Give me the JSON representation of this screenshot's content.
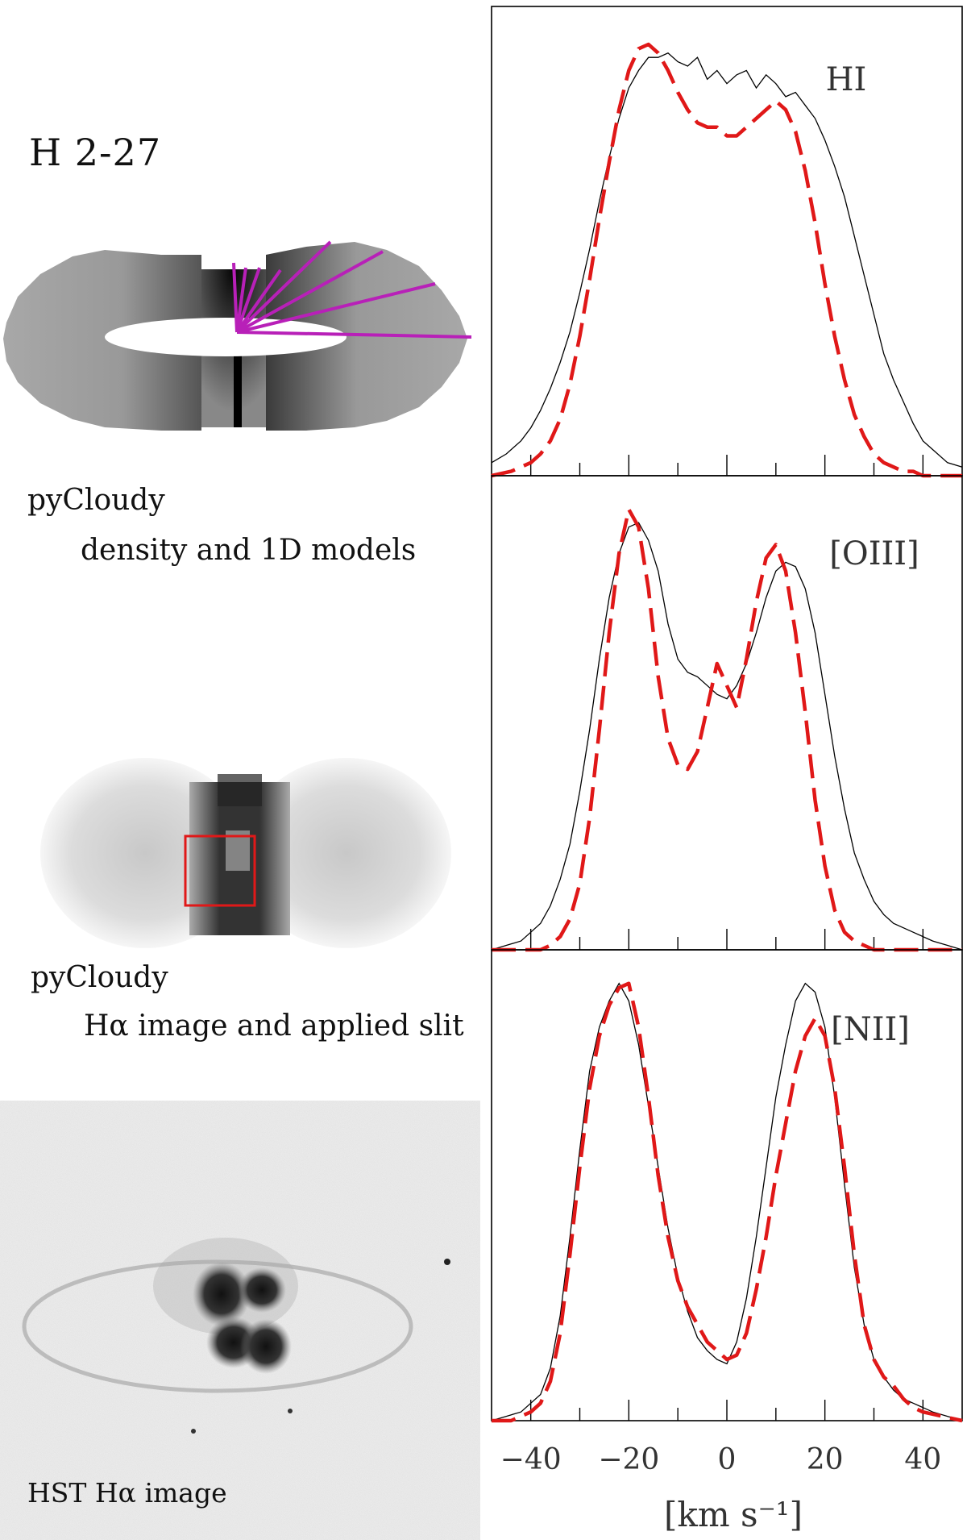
{
  "object_name": "H 2-27",
  "panels": {
    "density": {
      "caption_line1": "pyCloudy",
      "caption_line2": "density and 1D models"
    },
    "halpha_model": {
      "caption_line1": "pyCloudy",
      "caption_line2": "Hα image and applied slit"
    },
    "hst": {
      "caption": "HST Hα image"
    }
  },
  "colors": {
    "observed": "#000000",
    "model": "#e01818",
    "radial_lines": "#b820b8",
    "slit_box": "#e01818"
  },
  "chart_data": [
    {
      "type": "line",
      "label": "HI",
      "xlabel": "[km s⁻¹]",
      "xlim": [
        -48,
        48
      ],
      "ylim": [
        0,
        1.04
      ],
      "xticks": [
        -40,
        -20,
        0,
        20,
        40
      ],
      "series": [
        {
          "style": "solid-thin",
          "x": [
            -48,
            -45,
            -42,
            -40,
            -38,
            -36,
            -34,
            -32,
            -30,
            -28,
            -26,
            -24,
            -22,
            -20,
            -18,
            -16,
            -14,
            -12,
            -10,
            -8,
            -6,
            -4,
            -2,
            0,
            2,
            4,
            6,
            8,
            10,
            12,
            14,
            16,
            18,
            20,
            22,
            24,
            26,
            28,
            30,
            32,
            34,
            36,
            38,
            40,
            42,
            45,
            48
          ],
          "y": [
            0.03,
            0.05,
            0.08,
            0.11,
            0.15,
            0.2,
            0.26,
            0.33,
            0.42,
            0.52,
            0.63,
            0.73,
            0.82,
            0.89,
            0.93,
            0.96,
            0.96,
            0.97,
            0.95,
            0.94,
            0.96,
            0.91,
            0.93,
            0.9,
            0.92,
            0.93,
            0.89,
            0.92,
            0.9,
            0.87,
            0.88,
            0.85,
            0.82,
            0.77,
            0.71,
            0.64,
            0.55,
            0.46,
            0.37,
            0.28,
            0.22,
            0.17,
            0.12,
            0.08,
            0.06,
            0.03,
            0.02
          ]
        },
        {
          "style": "dashed-red",
          "x": [
            -48,
            -44,
            -40,
            -38,
            -36,
            -34,
            -32,
            -30,
            -28,
            -26,
            -24,
            -22,
            -20,
            -18,
            -16,
            -14,
            -12,
            -10,
            -8,
            -6,
            -4,
            -2,
            0,
            2,
            4,
            6,
            8,
            10,
            12,
            14,
            16,
            18,
            20,
            22,
            24,
            26,
            28,
            30,
            32,
            34,
            36,
            38,
            40,
            44,
            48
          ],
          "y": [
            0.0,
            0.01,
            0.03,
            0.05,
            0.08,
            0.13,
            0.21,
            0.32,
            0.45,
            0.59,
            0.72,
            0.84,
            0.93,
            0.98,
            0.99,
            0.97,
            0.93,
            0.88,
            0.84,
            0.81,
            0.8,
            0.8,
            0.78,
            0.78,
            0.8,
            0.82,
            0.84,
            0.86,
            0.84,
            0.79,
            0.7,
            0.58,
            0.44,
            0.32,
            0.22,
            0.14,
            0.09,
            0.05,
            0.03,
            0.02,
            0.01,
            0.01,
            0.0,
            0.0,
            0.0
          ]
        }
      ]
    },
    {
      "type": "line",
      "label": "[OIII]",
      "xlabel": "[km s⁻¹]",
      "xlim": [
        -48,
        48
      ],
      "ylim": [
        0,
        1.04
      ],
      "xticks": [
        -40,
        -20,
        0,
        20,
        40
      ],
      "series": [
        {
          "style": "solid-thin",
          "x": [
            -48,
            -45,
            -42,
            -40,
            -38,
            -36,
            -34,
            -32,
            -30,
            -28,
            -26,
            -24,
            -22,
            -20,
            -18,
            -16,
            -14,
            -12,
            -10,
            -8,
            -6,
            -4,
            -2,
            0,
            2,
            4,
            6,
            8,
            10,
            12,
            14,
            16,
            18,
            20,
            22,
            24,
            26,
            28,
            30,
            32,
            34,
            36,
            38,
            40,
            42,
            45,
            48
          ],
          "y": [
            0.0,
            0.01,
            0.02,
            0.04,
            0.06,
            0.1,
            0.16,
            0.24,
            0.36,
            0.5,
            0.66,
            0.8,
            0.9,
            0.96,
            0.97,
            0.93,
            0.86,
            0.74,
            0.66,
            0.63,
            0.62,
            0.6,
            0.58,
            0.57,
            0.6,
            0.65,
            0.72,
            0.8,
            0.86,
            0.88,
            0.87,
            0.82,
            0.72,
            0.58,
            0.44,
            0.32,
            0.22,
            0.16,
            0.11,
            0.08,
            0.06,
            0.05,
            0.04,
            0.03,
            0.02,
            0.01,
            0.0
          ]
        },
        {
          "style": "dashed-red",
          "x": [
            -48,
            -44,
            -40,
            -38,
            -36,
            -34,
            -32,
            -30,
            -28,
            -26,
            -24,
            -22,
            -20,
            -18,
            -16,
            -14,
            -12,
            -10,
            -8,
            -6,
            -4,
            -2,
            0,
            2,
            4,
            6,
            8,
            10,
            12,
            14,
            16,
            18,
            20,
            22,
            24,
            26,
            28,
            30,
            32,
            34,
            36,
            38,
            40,
            44,
            48
          ],
          "y": [
            0.0,
            0.0,
            0.0,
            0.0,
            0.01,
            0.03,
            0.07,
            0.15,
            0.3,
            0.5,
            0.72,
            0.9,
            1.0,
            0.96,
            0.82,
            0.62,
            0.48,
            0.42,
            0.41,
            0.45,
            0.55,
            0.65,
            0.6,
            0.55,
            0.66,
            0.79,
            0.89,
            0.92,
            0.86,
            0.72,
            0.54,
            0.34,
            0.19,
            0.09,
            0.04,
            0.02,
            0.01,
            0.0,
            0.0,
            0.0,
            0.0,
            0.0,
            0.0,
            0.0,
            0.0
          ]
        }
      ]
    },
    {
      "type": "line",
      "label": "[NII]",
      "xlabel": "[km s⁻¹]",
      "xlim": [
        -48,
        48
      ],
      "ylim": [
        0,
        1.04
      ],
      "xticks": [
        -40,
        -20,
        0,
        20,
        40
      ],
      "series": [
        {
          "style": "solid-thin",
          "x": [
            -48,
            -45,
            -42,
            -40,
            -38,
            -36,
            -34,
            -32,
            -30,
            -28,
            -26,
            -24,
            -22,
            -20,
            -18,
            -16,
            -14,
            -12,
            -10,
            -8,
            -6,
            -4,
            -2,
            0,
            2,
            4,
            6,
            8,
            10,
            12,
            14,
            16,
            18,
            20,
            22,
            24,
            26,
            28,
            30,
            32,
            34,
            36,
            38,
            40,
            42,
            45,
            48
          ],
          "y": [
            0.0,
            0.01,
            0.02,
            0.04,
            0.06,
            0.12,
            0.24,
            0.42,
            0.62,
            0.8,
            0.9,
            0.96,
            1.0,
            0.96,
            0.86,
            0.72,
            0.58,
            0.44,
            0.33,
            0.25,
            0.19,
            0.16,
            0.14,
            0.13,
            0.18,
            0.28,
            0.42,
            0.58,
            0.74,
            0.86,
            0.96,
            1.0,
            0.98,
            0.9,
            0.74,
            0.54,
            0.35,
            0.22,
            0.14,
            0.1,
            0.07,
            0.05,
            0.04,
            0.03,
            0.02,
            0.01,
            0.0
          ]
        },
        {
          "style": "dashed-red",
          "x": [
            -48,
            -44,
            -40,
            -38,
            -36,
            -34,
            -32,
            -30,
            -28,
            -26,
            -24,
            -22,
            -20,
            -18,
            -16,
            -14,
            -12,
            -10,
            -8,
            -6,
            -4,
            -2,
            0,
            2,
            4,
            6,
            8,
            10,
            12,
            14,
            16,
            18,
            20,
            22,
            24,
            26,
            28,
            30,
            32,
            34,
            36,
            38,
            40,
            44,
            48
          ],
          "y": [
            0.0,
            0.0,
            0.02,
            0.04,
            0.09,
            0.2,
            0.38,
            0.58,
            0.76,
            0.88,
            0.95,
            0.99,
            1.0,
            0.9,
            0.74,
            0.56,
            0.42,
            0.32,
            0.26,
            0.22,
            0.18,
            0.16,
            0.14,
            0.15,
            0.2,
            0.3,
            0.42,
            0.56,
            0.68,
            0.8,
            0.88,
            0.92,
            0.88,
            0.76,
            0.58,
            0.38,
            0.22,
            0.14,
            0.1,
            0.08,
            0.05,
            0.03,
            0.02,
            0.01,
            0.0
          ]
        }
      ]
    }
  ]
}
